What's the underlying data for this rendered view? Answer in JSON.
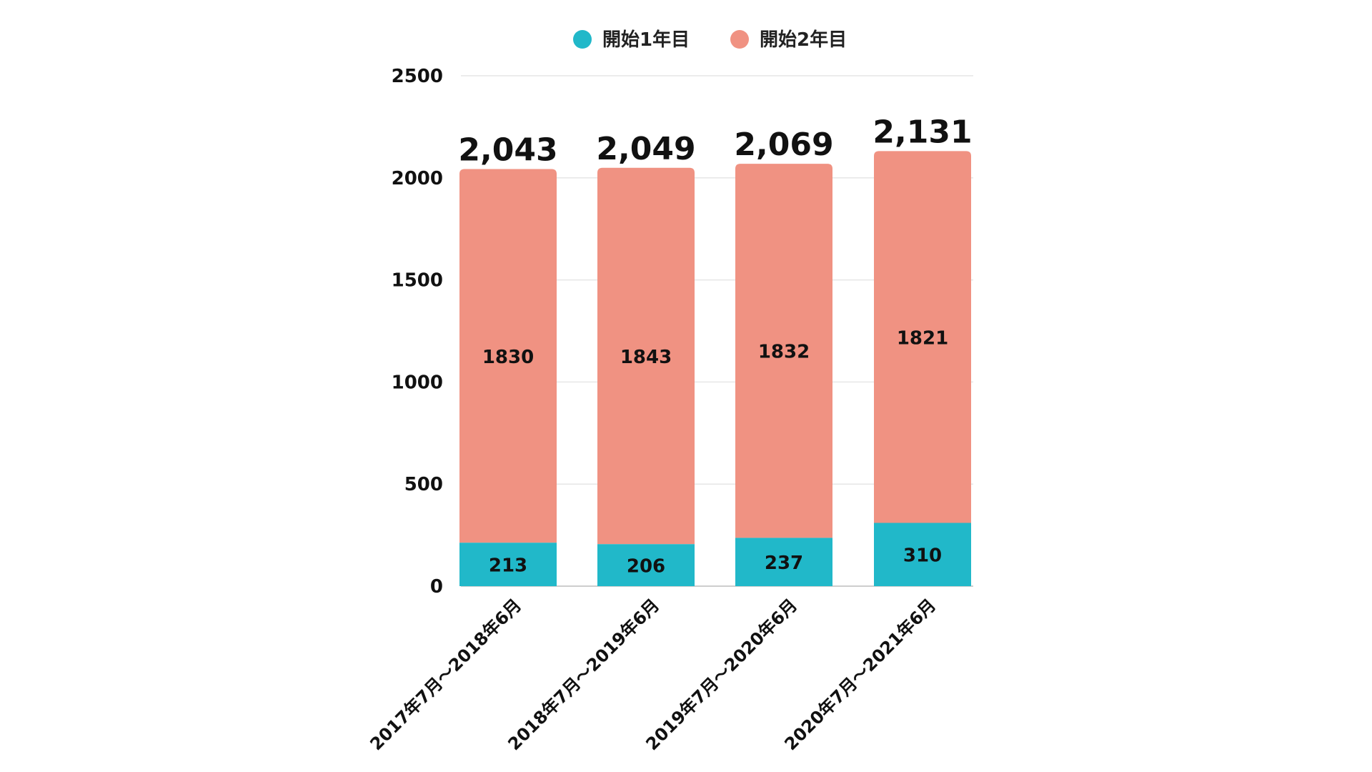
{
  "chart_data": {
    "type": "bar",
    "stacked": true,
    "categories": [
      "2017年7月～2018年6月",
      "2018年7月～2019年6月",
      "2019年7月～2020年6月",
      "2020年7月～2021年6月"
    ],
    "series": [
      {
        "name": "開始1年目",
        "color": "#21b8c9",
        "values": [
          213,
          206,
          237,
          310
        ]
      },
      {
        "name": "開始2年目",
        "color": "#f09282",
        "values": [
          1830,
          1843,
          1832,
          1821
        ]
      }
    ],
    "totals": [
      2043,
      2049,
      2069,
      2131
    ],
    "total_labels": [
      "2,043",
      "2,049",
      "2,069",
      "2,131"
    ],
    "yticks": [
      0,
      500,
      1000,
      1500,
      2000,
      2500
    ],
    "ylim": [
      0,
      2500
    ],
    "title": "",
    "xlabel": "",
    "ylabel": "",
    "legend_position": "top",
    "grid": true
  }
}
